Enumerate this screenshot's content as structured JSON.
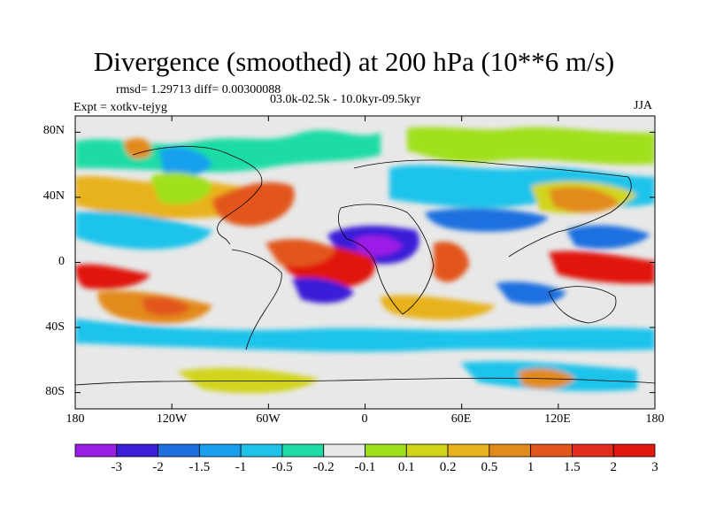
{
  "title": "Divergence (smoothed) at 200 hPa (10**6 m/s)",
  "stats": "rmsd= 1.29713 diff= 0.00300088",
  "experiment": "Expt = xotkv-tejyg",
  "period": "03.0k-02.5k - 10.0kyr-09.5kyr",
  "season": "JJA",
  "lat_labels": [
    "80N",
    "40N",
    "0",
    "40S",
    "80S"
  ],
  "lon_labels": [
    "180",
    "120W",
    "60W",
    "0",
    "60E",
    "120E",
    "180"
  ],
  "colorbar": {
    "labels": [
      "-3",
      "-2",
      "-1.5",
      "-1",
      "-0.5",
      "-0.2",
      "-0.1",
      "0.1",
      "0.2",
      "0.5",
      "1",
      "1.5",
      "2",
      "3"
    ],
    "colors": [
      "#9b1ee6",
      "#3b1fd8",
      "#1d6fe0",
      "#18a0ee",
      "#1fc3ea",
      "#1fdba5",
      "#e8e8e8",
      "#a0e01a",
      "#d2d41a",
      "#e8b21c",
      "#e38a1c",
      "#e2561c",
      "#e22d1c",
      "#e0180e"
    ]
  },
  "map": {
    "neutral_color": "#e8e8e8",
    "coast_color": "#000000"
  }
}
